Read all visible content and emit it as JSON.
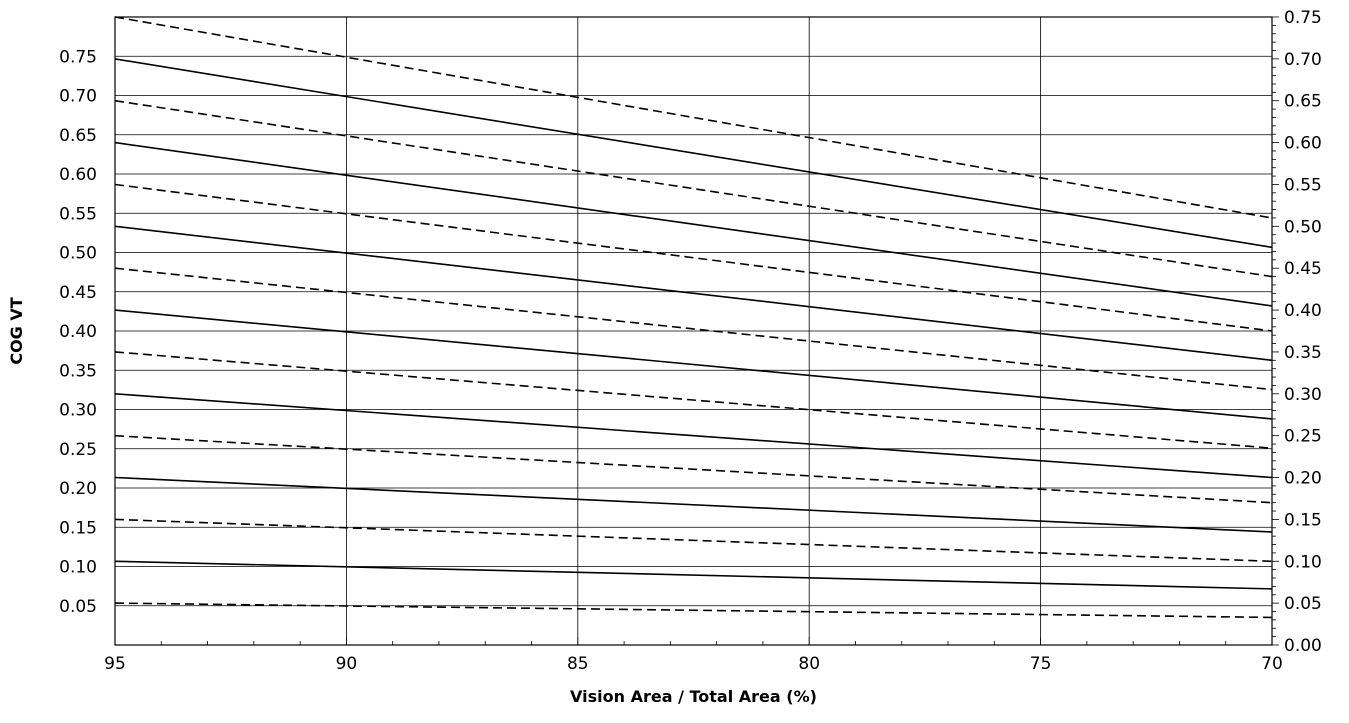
{
  "chart_data": {
    "type": "line",
    "xlabel": "Vision Area / Total Area (%)",
    "ylabel": "COG VT",
    "x_ticks": [
      "95",
      "90",
      "85",
      "80",
      "75",
      "70"
    ],
    "x_range": [
      95,
      70
    ],
    "left_ticks": [
      "0.75",
      "0.70",
      "0.65",
      "0.60",
      "0.55",
      "0.50",
      "0.45",
      "0.40",
      "0.35",
      "0.30",
      "0.25",
      "0.20",
      "0.15",
      "0.10",
      "0.05"
    ],
    "right_ticks": [
      "0.75",
      "0.70",
      "0.65",
      "0.60",
      "0.55",
      "0.50",
      "0.45",
      "0.40",
      "0.35",
      "0.30",
      "0.25",
      "0.20",
      "0.15",
      "0.10",
      "0.05",
      "0.00"
    ],
    "right_ylim": [
      0.0,
      0.75
    ],
    "grid": true,
    "series": [
      {
        "style": "dashed",
        "x": [
          95,
          70
        ],
        "y": [
          0.75,
          0.51
        ]
      },
      {
        "style": "solid",
        "x": [
          95,
          70
        ],
        "y": [
          0.7,
          0.475
        ]
      },
      {
        "style": "dashed",
        "x": [
          95,
          70
        ],
        "y": [
          0.65,
          0.44
        ]
      },
      {
        "style": "solid",
        "x": [
          95,
          70
        ],
        "y": [
          0.6,
          0.405
        ]
      },
      {
        "style": "dashed",
        "x": [
          95,
          70
        ],
        "y": [
          0.55,
          0.375
        ]
      },
      {
        "style": "solid",
        "x": [
          95,
          70
        ],
        "y": [
          0.5,
          0.34
        ]
      },
      {
        "style": "dashed",
        "x": [
          95,
          70
        ],
        "y": [
          0.45,
          0.305
        ]
      },
      {
        "style": "solid",
        "x": [
          95,
          70
        ],
        "y": [
          0.4,
          0.27
        ]
      },
      {
        "style": "dashed",
        "x": [
          95,
          70
        ],
        "y": [
          0.35,
          0.235
        ]
      },
      {
        "style": "solid",
        "x": [
          95,
          70
        ],
        "y": [
          0.3,
          0.2
        ]
      },
      {
        "style": "dashed",
        "x": [
          95,
          70
        ],
        "y": [
          0.25,
          0.17
        ]
      },
      {
        "style": "solid",
        "x": [
          95,
          70
        ],
        "y": [
          0.2,
          0.135
        ]
      },
      {
        "style": "dashed",
        "x": [
          95,
          70
        ],
        "y": [
          0.15,
          0.1
        ]
      },
      {
        "style": "solid",
        "x": [
          95,
          70
        ],
        "y": [
          0.1,
          0.067
        ]
      },
      {
        "style": "dashed",
        "x": [
          95,
          70
        ],
        "y": [
          0.05,
          0.033
        ]
      }
    ]
  }
}
